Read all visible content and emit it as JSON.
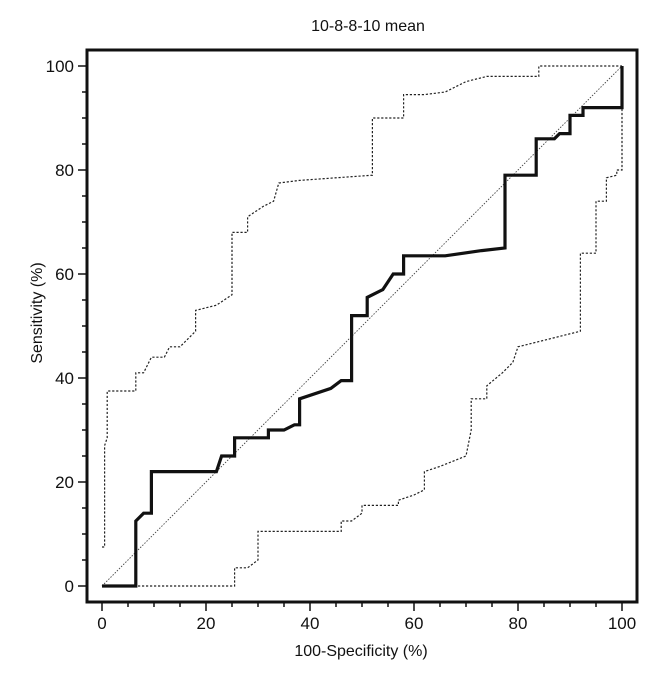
{
  "chart_data": {
    "type": "line",
    "title": "10-8-8-10 mean",
    "xlabel": "100-Specificity (%)",
    "ylabel": "Sensitivity  (%)",
    "xlim": [
      0,
      100
    ],
    "ylim": [
      0,
      100
    ],
    "x_ticks": [
      "0",
      "20",
      "40",
      "60",
      "80",
      "100"
    ],
    "y_ticks": [
      "0",
      "20",
      "40",
      "60",
      "80",
      "100"
    ],
    "grid": false,
    "legend": "none",
    "series": [
      {
        "style": "solid-thick",
        "points": [
          [
            0,
            0
          ],
          [
            6.5,
            0
          ],
          [
            6.5,
            12.5
          ],
          [
            8,
            14
          ],
          [
            9.5,
            14
          ],
          [
            9.5,
            22
          ],
          [
            22,
            22
          ],
          [
            23,
            25
          ],
          [
            25.5,
            25
          ],
          [
            25.5,
            28.5
          ],
          [
            32,
            28.5
          ],
          [
            32,
            30
          ],
          [
            35,
            30
          ],
          [
            37,
            31
          ],
          [
            38,
            31
          ],
          [
            38,
            36
          ],
          [
            44,
            38
          ],
          [
            46,
            39.5
          ],
          [
            48,
            39.5
          ],
          [
            48,
            52
          ],
          [
            51,
            52
          ],
          [
            51,
            55.5
          ],
          [
            54,
            57
          ],
          [
            56,
            60
          ],
          [
            58,
            60
          ],
          [
            58,
            63.5
          ],
          [
            66,
            63.5
          ],
          [
            73,
            64.5
          ],
          [
            77.5,
            65
          ],
          [
            77.5,
            79
          ],
          [
            83.5,
            79
          ],
          [
            83.5,
            86
          ],
          [
            87,
            86
          ],
          [
            88,
            87
          ],
          [
            90,
            87
          ],
          [
            90,
            90.5
          ],
          [
            92.5,
            90.5
          ],
          [
            92.5,
            92
          ],
          [
            100,
            92
          ],
          [
            100,
            100
          ]
        ]
      },
      {
        "style": "dotted-upper-ci",
        "points": [
          [
            0,
            7.5
          ],
          [
            0.5,
            7.5
          ],
          [
            0.5,
            27
          ],
          [
            1,
            28.5
          ],
          [
            1,
            37.5
          ],
          [
            6.5,
            37.5
          ],
          [
            6.5,
            41
          ],
          [
            8,
            41
          ],
          [
            9.5,
            44
          ],
          [
            12,
            44
          ],
          [
            13,
            46
          ],
          [
            15,
            46
          ],
          [
            17,
            48
          ],
          [
            18,
            49
          ],
          [
            18,
            53
          ],
          [
            20,
            53.5
          ],
          [
            22,
            54
          ],
          [
            25,
            56
          ],
          [
            25,
            68
          ],
          [
            28,
            68
          ],
          [
            28,
            71
          ],
          [
            31,
            73
          ],
          [
            33,
            74
          ],
          [
            34,
            77.5
          ],
          [
            38,
            78
          ],
          [
            52,
            79
          ],
          [
            52,
            90
          ],
          [
            58,
            90
          ],
          [
            58,
            94.5
          ],
          [
            62,
            94.5
          ],
          [
            66,
            95
          ],
          [
            70,
            97
          ],
          [
            74,
            98
          ],
          [
            84,
            98
          ],
          [
            84,
            100
          ],
          [
            100,
            100
          ]
        ]
      },
      {
        "style": "dotted-lower-ci",
        "points": [
          [
            0,
            0
          ],
          [
            25.5,
            0
          ],
          [
            25.5,
            3.5
          ],
          [
            28,
            3.5
          ],
          [
            30,
            5
          ],
          [
            30,
            10.5
          ],
          [
            38,
            10.5
          ],
          [
            46,
            10.5
          ],
          [
            46,
            12.5
          ],
          [
            48,
            12.5
          ],
          [
            50,
            14
          ],
          [
            50,
            15.5
          ],
          [
            52,
            15.5
          ],
          [
            57,
            15.5
          ],
          [
            57,
            16.5
          ],
          [
            60,
            17.5
          ],
          [
            62,
            18.5
          ],
          [
            62,
            22
          ],
          [
            65,
            23
          ],
          [
            70,
            25
          ],
          [
            71,
            30
          ],
          [
            71,
            36
          ],
          [
            74,
            36
          ],
          [
            74,
            38.5
          ],
          [
            77,
            41
          ],
          [
            79,
            43
          ],
          [
            80,
            46
          ],
          [
            84,
            47
          ],
          [
            88,
            48
          ],
          [
            92,
            49
          ],
          [
            92,
            64
          ],
          [
            95,
            64
          ],
          [
            95,
            74
          ],
          [
            97,
            74
          ],
          [
            97,
            78.5
          ],
          [
            99,
            79
          ],
          [
            99,
            80
          ],
          [
            100,
            80
          ],
          [
            100,
            100
          ]
        ]
      },
      {
        "style": "dotted-thin-diagonal",
        "points": [
          [
            0,
            0
          ],
          [
            100,
            100
          ]
        ]
      }
    ]
  }
}
